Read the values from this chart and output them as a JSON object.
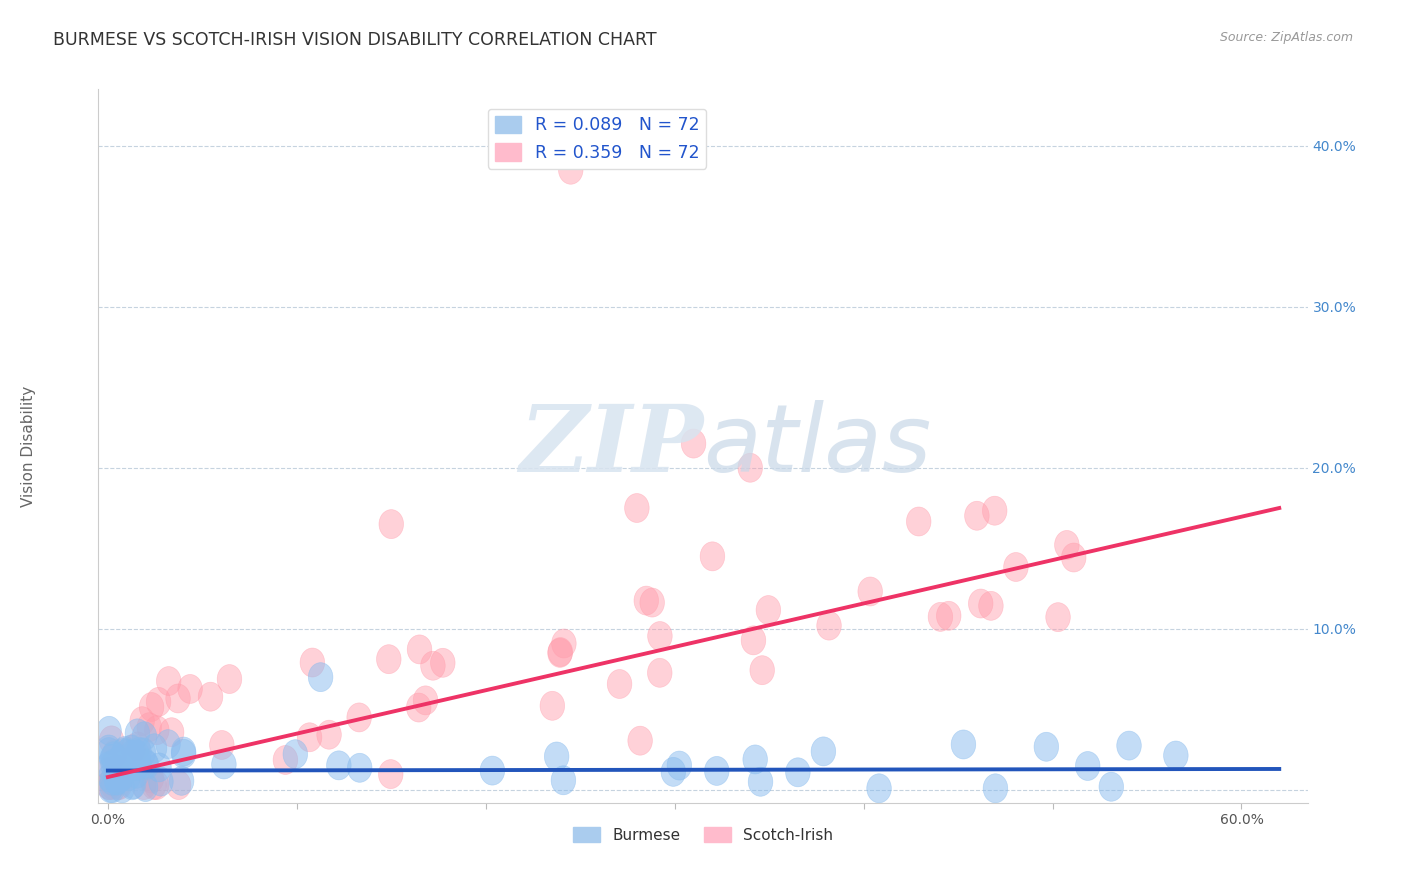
{
  "title": "BURMESE VS SCOTCH-IRISH VISION DISABILITY CORRELATION CHART",
  "source": "Source: ZipAtlas.com",
  "ylabel": "Vision Disability",
  "ytick_vals": [
    0.0,
    0.1,
    0.2,
    0.3,
    0.4
  ],
  "ytick_labels": [
    "",
    "10.0%",
    "20.0%",
    "30.0%",
    "40.0%"
  ],
  "xtick_vals": [
    0.0,
    0.1,
    0.2,
    0.3,
    0.4,
    0.5,
    0.6
  ],
  "xlim": [
    -0.005,
    0.635
  ],
  "ylim": [
    -0.008,
    0.435
  ],
  "burmese_color": "#88bbee",
  "scotch_irish_color": "#ff9baa",
  "burmese_line_color": "#2255bb",
  "scotch_irish_line_color": "#ee3366",
  "legend_R_color": "#2255cc",
  "N": 72,
  "burmese_R": 0.089,
  "scotch_irish_R": 0.359,
  "scotch_irish_line_y0": 0.008,
  "scotch_irish_line_y1": 0.175,
  "burmese_line_y0": 0.012,
  "burmese_line_y1": 0.013
}
